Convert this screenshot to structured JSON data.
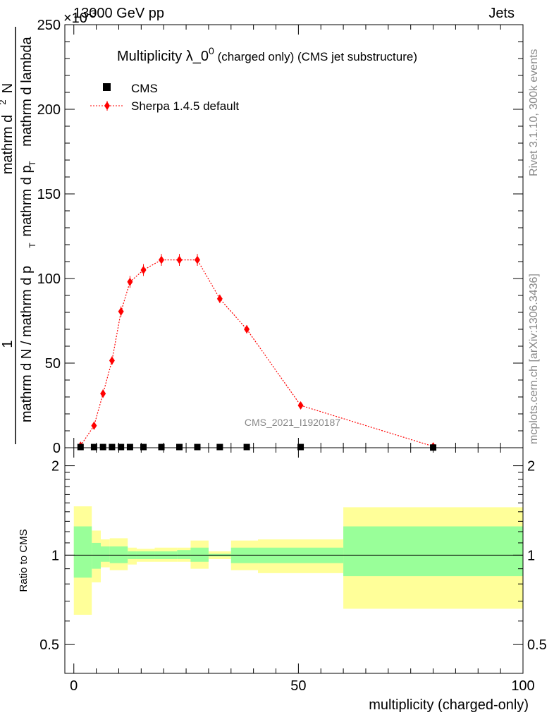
{
  "header": {
    "energy": "13000 GeV pp",
    "process": "Jets"
  },
  "side_labels": {
    "rivet": "Rivet 3.1.10,  300k events",
    "mcplots": "mcplots.cern.ch [arXiv:1306.3436]"
  },
  "chart_data": [
    {
      "type": "scatter",
      "title": "Multiplicity λ_0^0 (charged only) (CMS jet substructure)",
      "title_main": "Multiplicity λ_0",
      "title_sup": "0",
      "title_rest": " (charged only) (CMS jet substructure)",
      "ylabel_parts": {
        "numerator": "1",
        "denominator": "mathrm d N / mathrm d p",
        "right_num": "mathrm d",
        "right_sup": "2",
        "right_num2": "N",
        "right_den": "mathrm d p",
        "right_den_sub": "T",
        "right_den2": " mathrm d lambda",
        "sub_T": "T"
      },
      "y_multiplier": "×10",
      "y_multiplier_exp": "-3",
      "analysis_tag": "CMS_2021_I1920187",
      "xlim": [
        -2,
        100
      ],
      "ylim": [
        0,
        250
      ],
      "yticks": [
        0,
        50,
        100,
        150,
        200,
        250
      ],
      "legend_position": "top-left",
      "series": [
        {
          "name": "CMS",
          "marker": "square",
          "color": "#000000",
          "x": [
            1.5,
            4.5,
            6.5,
            8.5,
            10.5,
            12.5,
            15.5,
            19.5,
            23.5,
            27.5,
            32.5,
            38.5,
            50.5,
            80
          ],
          "y": [
            0.4,
            0.4,
            0.4,
            0.4,
            0.4,
            0.4,
            0.4,
            0.4,
            0.4,
            0.4,
            0.4,
            0.4,
            0.4,
            0.1
          ]
        },
        {
          "name": "Sherpa 1.4.5 default",
          "marker": "diamond",
          "color": "#ff0000",
          "x": [
            1.5,
            4.5,
            6.5,
            8.5,
            10.5,
            12.5,
            15.5,
            19.5,
            23.5,
            27.5,
            32.5,
            38.5,
            50.5,
            80
          ],
          "y": [
            1.2,
            13,
            32,
            51.5,
            80.5,
            98,
            105,
            111,
            111,
            111,
            88,
            70,
            25,
            0.8
          ],
          "yerr": [
            0.5,
            1.5,
            2.5,
            2.5,
            3,
            3.5,
            3.5,
            3.5,
            3.5,
            3.5,
            2.5,
            2.5,
            1.5,
            0.3
          ]
        }
      ]
    },
    {
      "type": "area",
      "ylabel": "Ratio to CMS",
      "xlabel": "multiplicity (charged-only)",
      "xlim": [
        -2,
        100
      ],
      "ylim": [
        0.4,
        2.3
      ],
      "log_y": true,
      "yticks": [
        0.5,
        1,
        2
      ],
      "xticks": [
        0,
        50,
        100
      ],
      "reference_line": 1,
      "bands": {
        "edges": [
          0,
          4,
          6,
          8,
          12,
          14,
          18,
          23,
          26,
          30,
          35,
          41,
          60,
          100
        ],
        "yellow_low": [
          0.63,
          0.81,
          0.91,
          0.89,
          0.93,
          0.95,
          0.95,
          0.95,
          0.9,
          0.97,
          0.89,
          0.87,
          0.66
        ],
        "yellow_high": [
          1.46,
          1.21,
          1.13,
          1.14,
          1.06,
          1.05,
          1.06,
          1.06,
          1.12,
          1.03,
          1.12,
          1.13,
          1.45
        ],
        "green_low": [
          0.84,
          0.9,
          0.95,
          0.94,
          0.97,
          0.97,
          0.97,
          0.97,
          0.95,
          0.99,
          0.94,
          0.94,
          0.85
        ],
        "green_high": [
          1.25,
          1.1,
          1.07,
          1.07,
          1.03,
          1.03,
          1.03,
          1.04,
          1.06,
          1.01,
          1.06,
          1.06,
          1.25
        ]
      },
      "colors": {
        "yellow": "#ffff99",
        "green": "#99ff99"
      }
    }
  ]
}
